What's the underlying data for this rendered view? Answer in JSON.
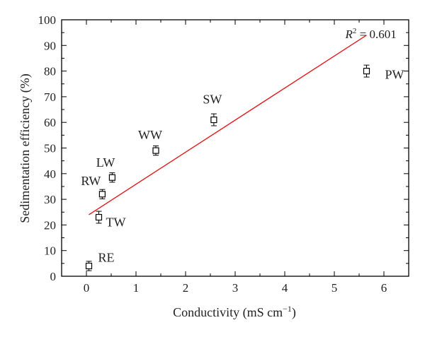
{
  "chart_data": {
    "type": "scatter",
    "xlabel": "Conductivity (mS cm",
    "xlabel_superscript": "−1",
    "xlabel_suffix": ")",
    "ylabel": "Sedimentation efficiency (%)",
    "xlim": [
      -0.5,
      6.5
    ],
    "ylim": [
      0,
      100
    ],
    "x_ticks": [
      0,
      1,
      2,
      3,
      4,
      5,
      6
    ],
    "y_ticks": [
      0,
      10,
      20,
      30,
      40,
      50,
      60,
      70,
      80,
      90,
      100
    ],
    "grid": false,
    "series": [
      {
        "marker": "open-square",
        "color": "#000000",
        "points": [
          {
            "label": "RE",
            "x": 0.05,
            "y": 4,
            "error": 1
          },
          {
            "label": "TW",
            "x": 0.25,
            "y": 23,
            "error": 1.5
          },
          {
            "label": "RW",
            "x": 0.32,
            "y": 32,
            "error": 1
          },
          {
            "label": "LW",
            "x": 0.52,
            "y": 38.5,
            "error": 1
          },
          {
            "label": "WW",
            "x": 1.4,
            "y": 49,
            "error": 1
          },
          {
            "label": "SW",
            "x": 2.57,
            "y": 61,
            "error": 1.5
          },
          {
            "label": "PW",
            "x": 5.65,
            "y": 80,
            "error": 1.5
          }
        ]
      }
    ],
    "fit_line": {
      "color": "#e31a1c",
      "x": [
        0.05,
        5.65
      ],
      "y": [
        24,
        94
      ]
    },
    "annotation": {
      "prefix": "R",
      "superscript": "2",
      "text": " = 0.601"
    }
  }
}
